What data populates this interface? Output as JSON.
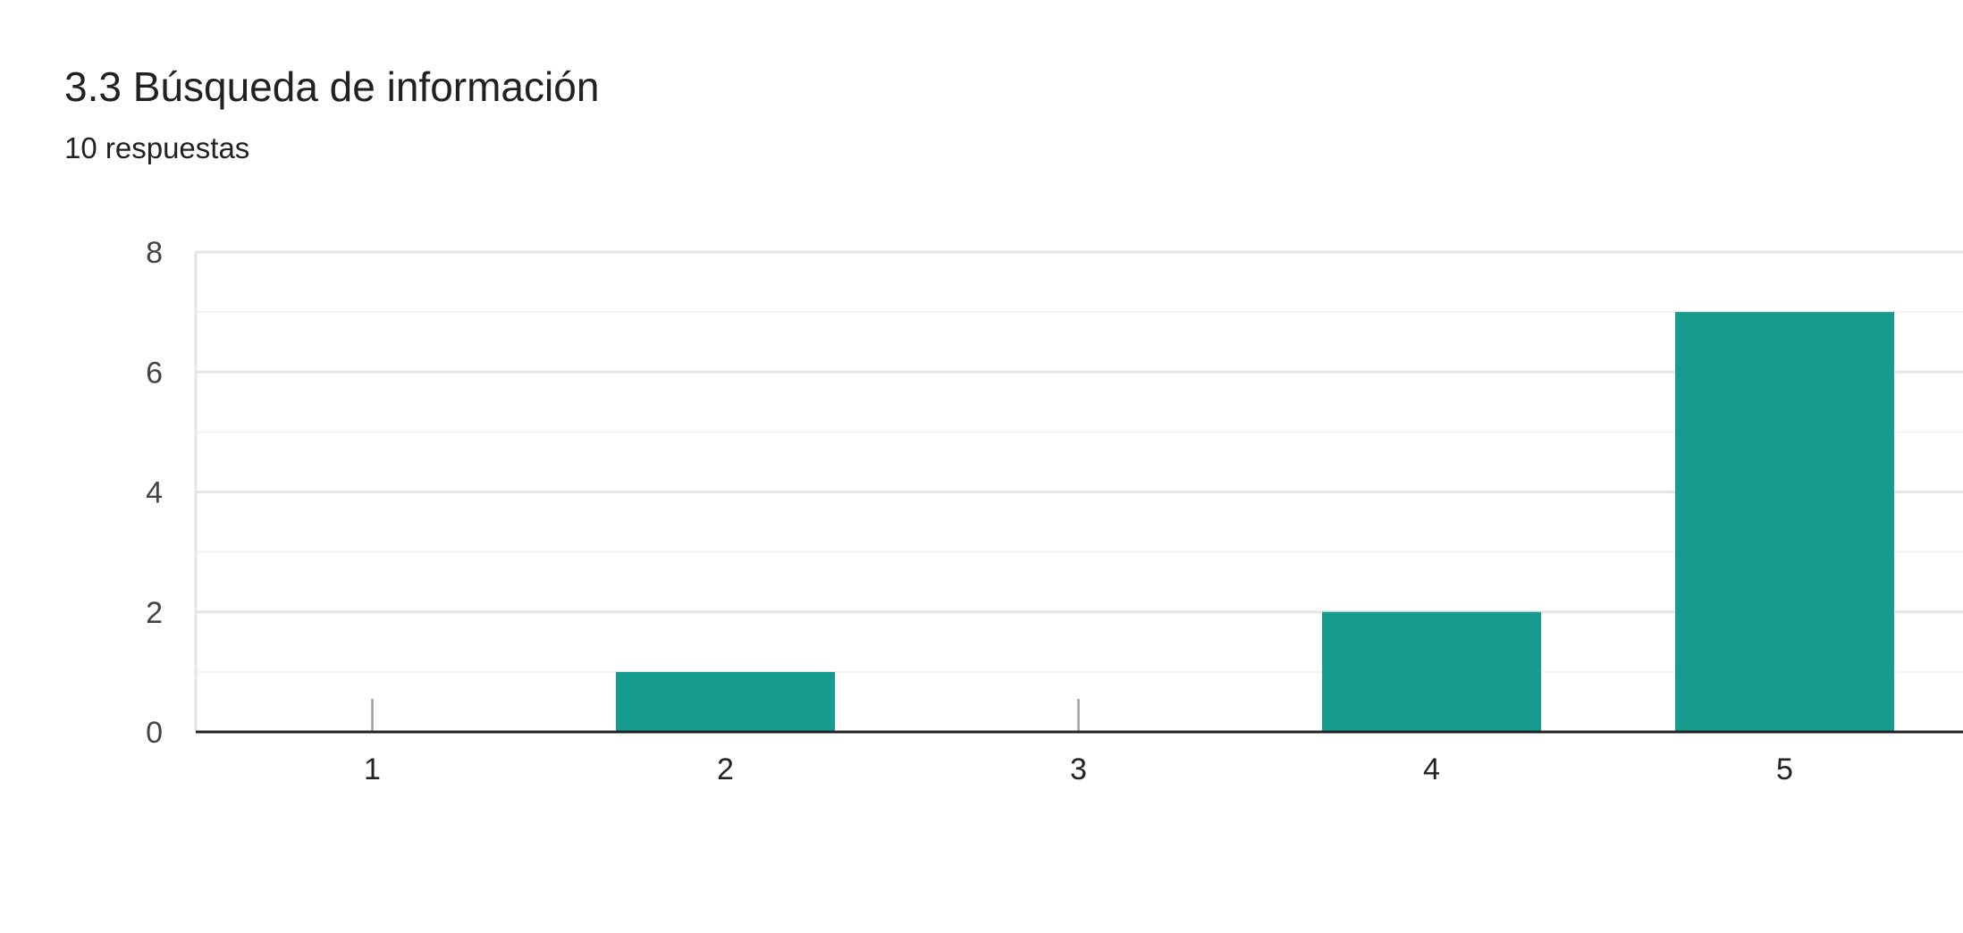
{
  "header": {
    "title": "3.3 Búsqueda de información",
    "subtitle": "10 respuestas"
  },
  "colors": {
    "bar": "#169b8f",
    "axis": "#212121",
    "grid_major": "#e6e6e6",
    "grid_minor": "#f3f3f3",
    "tick_label": "#444444",
    "category_label": "#222222",
    "zero_marker": "#9e9e9e"
  },
  "chart_data": {
    "type": "bar",
    "title": "",
    "xlabel": "",
    "ylabel": "",
    "categories": [
      "1",
      "2",
      "3",
      "4",
      "5"
    ],
    "values": [
      0,
      1,
      0,
      2,
      7
    ],
    "ylim": [
      0,
      8
    ],
    "y_ticks": [
      0,
      2,
      4,
      6,
      8
    ],
    "grid": true,
    "legend": "none"
  }
}
